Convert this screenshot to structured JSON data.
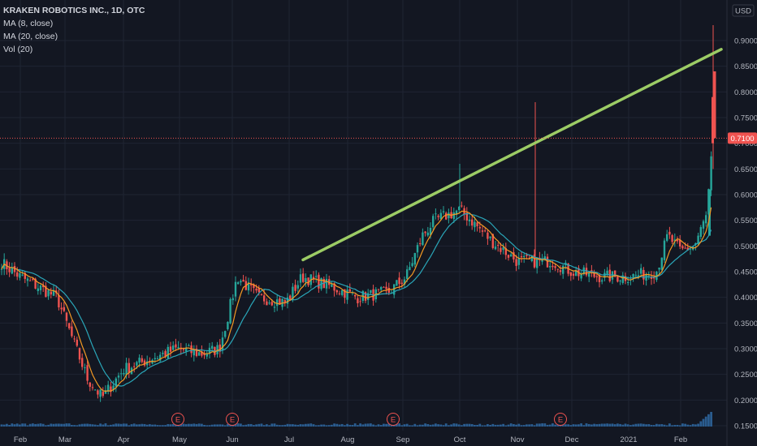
{
  "legend": {
    "symbol": "KRAKEN ROBOTICS INC., 1D, OTC",
    "ma8": "MA (8, close)",
    "ma20": "MA (20, close)",
    "vol": "Vol (20)"
  },
  "chart_data": {
    "type": "candlestick",
    "currency": "USD",
    "last_price": "0.7100",
    "y_ticks": [
      "0.9000",
      "0.8500",
      "0.8000",
      "0.7500",
      "0.7000",
      "0.6500",
      "0.6000",
      "0.5500",
      "0.5000",
      "0.4500",
      "0.4000",
      "0.3500",
      "0.3000",
      "0.2500",
      "0.2000",
      "0.1500"
    ],
    "ylim": [
      0.15,
      0.9
    ],
    "x_ticks": [
      "Feb",
      "Mar",
      "Apr",
      "May",
      "Jun",
      "Jul",
      "Aug",
      "Sep",
      "Oct",
      "Nov",
      "Dec",
      "2021",
      "Feb"
    ],
    "earnings_markers": [
      "E",
      "E",
      "E",
      "E"
    ],
    "trendline": {
      "from": {
        "date": "Jul",
        "price": 0.473
      },
      "to": {
        "date": "Feb",
        "price": 0.883
      }
    },
    "price_path": [
      [
        "Jan",
        0.47
      ],
      [
        "Feb",
        0.44
      ],
      [
        "Mar",
        0.4
      ],
      [
        "Mar",
        0.24
      ],
      [
        "Mar",
        0.205
      ],
      [
        "Apr",
        0.26
      ],
      [
        "Apr",
        0.28
      ],
      [
        "May",
        0.3
      ],
      [
        "May",
        0.29
      ],
      [
        "Jun",
        0.3
      ],
      [
        "Jun",
        0.36
      ],
      [
        "Jun",
        0.44
      ],
      [
        "Jun",
        0.4
      ],
      [
        "Jul",
        0.39
      ],
      [
        "Jul",
        0.44
      ],
      [
        "Aug",
        0.42
      ],
      [
        "Aug",
        0.4
      ],
      [
        "Sep",
        0.41
      ],
      [
        "Sep",
        0.44
      ],
      [
        "Sep",
        0.52
      ],
      [
        "Sep",
        0.55
      ],
      [
        "Oct",
        0.57
      ],
      [
        "Oct",
        0.55
      ],
      [
        "Oct",
        0.51
      ],
      [
        "Nov",
        0.47
      ],
      [
        "Nov",
        0.47
      ],
      [
        "Dec",
        0.45
      ],
      [
        "Dec",
        0.44
      ],
      [
        "2021",
        0.44
      ],
      [
        "2021",
        0.45
      ],
      [
        "Feb",
        0.52
      ],
      [
        "Feb",
        0.49
      ],
      [
        "Feb",
        0.5
      ],
      [
        "Feb",
        0.56
      ],
      [
        "Feb",
        0.71
      ]
    ],
    "spikes": [
      {
        "date": "Oct",
        "high": 0.66
      },
      {
        "date": "Nov",
        "high": 0.78
      },
      {
        "date": "Feb",
        "high": 0.61
      },
      {
        "date": "Feb",
        "high": 0.93
      }
    ]
  },
  "colors": {
    "background": "#131722",
    "grid": "#1f2433",
    "up": "#26a69a",
    "down": "#ef5350",
    "ma8": "#f59a23",
    "ma20": "#2aa6b8",
    "trendline": "#9ccc65",
    "price_label": "#f05350",
    "volume": "#2a5c8f"
  }
}
